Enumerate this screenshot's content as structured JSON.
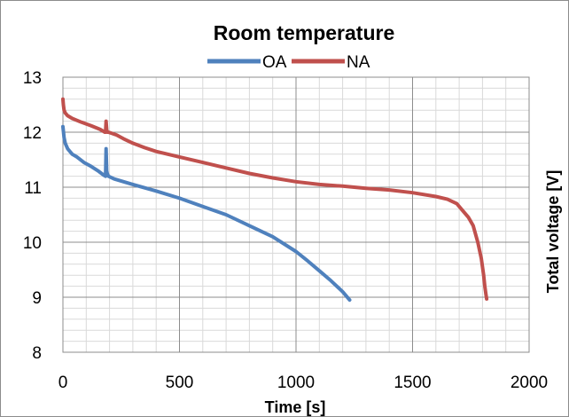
{
  "chart_data": {
    "type": "line",
    "title": "Room temperature",
    "xlabel": "Time [s]",
    "ylabel": "Total voltage [V]",
    "xlim": [
      0,
      2000
    ],
    "ylim": [
      8,
      13
    ],
    "x_ticks": [
      0,
      500,
      1000,
      1500,
      2000
    ],
    "y_ticks": [
      8,
      9,
      10,
      11,
      12,
      13
    ],
    "x_tick_labels": [
      "0",
      "500",
      "1000",
      "1500",
      "2000"
    ],
    "y_tick_labels": [
      "8",
      "9",
      "10",
      "11",
      "12",
      "13"
    ],
    "x_minor_step": 100,
    "y_minor_step": 0.2,
    "grid": true,
    "legend_position": "top-center",
    "series": [
      {
        "name": "OA",
        "color": "#4f81bd",
        "x": [
          0,
          5,
          10,
          20,
          40,
          60,
          90,
          120,
          150,
          175,
          183,
          185,
          188,
          190,
          195,
          220,
          260,
          300,
          400,
          500,
          600,
          700,
          800,
          900,
          1000,
          1050,
          1100,
          1150,
          1200,
          1230
        ],
        "y": [
          12.1,
          11.9,
          11.8,
          11.7,
          11.6,
          11.55,
          11.45,
          11.38,
          11.3,
          11.22,
          11.2,
          11.7,
          11.3,
          11.25,
          11.2,
          11.15,
          11.1,
          11.05,
          10.93,
          10.8,
          10.65,
          10.5,
          10.3,
          10.1,
          9.83,
          9.66,
          9.48,
          9.3,
          9.1,
          8.95
        ]
      },
      {
        "name": "NA",
        "color": "#c0504d",
        "x": [
          0,
          2,
          5,
          10,
          20,
          40,
          80,
          120,
          160,
          180,
          183,
          185,
          188,
          190,
          195,
          230,
          260,
          300,
          350,
          400,
          500,
          600,
          700,
          800,
          900,
          1000,
          1100,
          1200,
          1300,
          1400,
          1500,
          1600,
          1650,
          1690,
          1710,
          1740,
          1760,
          1780,
          1795,
          1805,
          1810,
          1815,
          1818
        ],
        "y": [
          12.6,
          12.5,
          12.4,
          12.35,
          12.3,
          12.25,
          12.18,
          12.12,
          12.05,
          12.0,
          12.0,
          12.2,
          12.05,
          12.0,
          12.0,
          11.95,
          11.88,
          11.8,
          11.72,
          11.65,
          11.55,
          11.45,
          11.35,
          11.25,
          11.17,
          11.1,
          11.05,
          11.02,
          10.98,
          10.95,
          10.9,
          10.83,
          10.78,
          10.7,
          10.6,
          10.45,
          10.3,
          10.0,
          9.7,
          9.4,
          9.2,
          9.05,
          8.97
        ]
      }
    ]
  }
}
